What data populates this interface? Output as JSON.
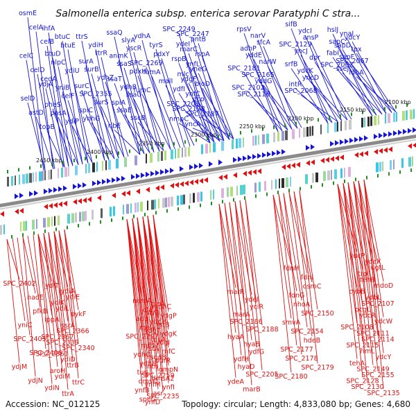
{
  "title": "Salmonella enterica subsp. enterica serovar Paratyphi C stra...",
  "footer": {
    "accession": "Accession: NC_012125",
    "summary": "Topology: circular; Length: 4,833,080 bp; Genes: 4,680"
  },
  "colors": {
    "forward": "#1414d8",
    "reverse": "#e01010",
    "backbone": "#8a8a8a",
    "tick": "#228b22"
  },
  "kbp_ticks": [
    "2450 kbp",
    "2400 kbp",
    "2350 kbp",
    "2300 kbp",
    "2250 kbp",
    "2200 kbp",
    "2150 kbp",
    "2100 kbp"
  ],
  "blue_labels": [
    "osmE",
    "celA",
    "celB",
    "celC",
    "celD",
    "ydjA",
    "selD",
    "astD",
    "topB",
    "ihfA",
    "btuC",
    "btuE",
    "btuD",
    "nlpC",
    "ydiU",
    "cedA",
    "yniB",
    "celF",
    "pheS",
    "ppsA",
    "ydiP",
    "ttrS",
    "ydiH",
    "ttrR",
    "surA",
    "surB",
    "ydhZ",
    "surC",
    "SPC_2355",
    "surS",
    "spiC",
    "ynhG",
    "ssaQ",
    "slyA",
    "yscR",
    "anmK",
    "ssaS",
    "pdxH",
    "ssaT",
    "ydhB",
    "ssaU",
    "spiA",
    "ssaE",
    "sscB",
    "ribE",
    "ydhA",
    "tyrS",
    "pdxY",
    "SPC_2269",
    "fumA",
    "malI",
    "fumC",
    "SPC_2249",
    "SPC_2247",
    "pntB",
    "ydeI",
    "marC",
    "rspA",
    "rspB",
    "ynfL",
    "yneG",
    "mlc",
    "ydgF",
    "bioD",
    "ydfI",
    "ynfC",
    "dcp",
    "SPC_2201",
    "SPC_2198",
    "SPC_2187",
    "nmpC",
    "yncA",
    "rpsV",
    "narV",
    "sfcA",
    "adhP",
    "yddE",
    "narW",
    "SPC_2181",
    "SPC_2165",
    "yddG",
    "SPC_2102",
    "SPC_2116",
    "sifB",
    "ydcI",
    "ansP",
    "SPC_2129",
    "yncJ",
    "dpr",
    "srfB",
    "ydcK",
    "yncD",
    "intR",
    "SPC_2068",
    "hslJ",
    "ynaI",
    "ydcY",
    "sapC",
    "sapD",
    "tpx",
    "fabI",
    "sapF",
    "SPC_2067",
    "SPC_2062",
    "sseJ",
    "ldhA"
  ],
  "red_labels": [
    "SPC_2402",
    "nadE",
    "pfkB",
    "yniC",
    "SPC_2405",
    "SPC_2406",
    "ydjM",
    "ydjN",
    "ydiT",
    "ydiA",
    "ydiE",
    "ydiK",
    "ydiL",
    "pykF",
    "lppA",
    "ssrA",
    "SPC_2366",
    "SPC_2367",
    "SPC_2339",
    "SPC_2340",
    "SPC_2361",
    "ydiD",
    "ttrB",
    "aroH",
    "ydiM",
    "ttrC",
    "ydiN",
    "ttrA",
    "nemA",
    "gloA",
    "ydhC",
    "cfa",
    "slyB",
    "ydgP",
    "add",
    "ydgH",
    "rstB",
    "maly",
    "ydgT",
    "ydgK",
    "SPC_2297",
    "tqsA",
    "ydgI",
    "rnfB",
    "rstA",
    "rnfC",
    "ydhO",
    "sodB",
    "purR",
    "ydhE",
    "nth",
    "ompN",
    "tus",
    "SPC_2259",
    "dmsA2",
    "dmsC",
    "ynfM",
    "ynfI",
    "ynfB",
    "asr",
    "SPC_2235",
    "speG",
    "ynfD",
    "marR",
    "ydeI",
    "yciR",
    "marA",
    "SPC_2186",
    "SPC_2188",
    "hyaA",
    "hyaB",
    "ydfG",
    "ydfH",
    "hyaD",
    "SPC_2205",
    "ydeA",
    "marB",
    "fdnH",
    "fdnI",
    "osmC",
    "fdnG",
    "nhoA",
    "SPC_2150",
    "smvA",
    "SPC_2154",
    "hdeB",
    "SPC_2177",
    "SPC_2178",
    "SPC_2179",
    "SPC_2180",
    "ydcP",
    "ydcX",
    "ugtL",
    "trg",
    "tehB",
    "mdoD",
    "cybB",
    "ydbL",
    "SPC_2107",
    "pcgL",
    "ydcR",
    "ydcW",
    "SPC_2108",
    "SPC_2111",
    "SPC_2114",
    "SPC_2115",
    "rimL",
    "ydcY",
    "tehA",
    "SPC_2149",
    "SPC_2155",
    "SPC_2128",
    "SPC_2130",
    "SPC_2135"
  ]
}
